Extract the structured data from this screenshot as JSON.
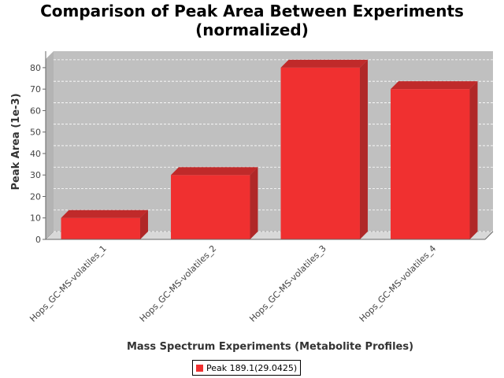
{
  "chart_data": {
    "type": "bar",
    "title_lines": [
      "Comparison of Peak Area Between Experiments",
      "(normalized)"
    ],
    "xlabel": "Mass Spectrum Experiments (Metabolite Profiles)",
    "ylabel": "Peak Area (1e-3)",
    "categories": [
      "Hops_GC-MS-volatiles_1",
      "Hops_GC-MS-volatiles_2",
      "Hops_GC-MS-volatiles_3",
      "Hops_GC-MS-volatiles_4"
    ],
    "series": [
      {
        "name": "Peak 189.1(29.0425)",
        "values": [
          10,
          30,
          80,
          70
        ]
      }
    ],
    "ylim": [
      0,
      84
    ],
    "yticks": [
      0,
      10,
      20,
      30,
      40,
      50,
      60,
      70,
      80
    ],
    "grid": true,
    "legend_position": "bottom",
    "colors": {
      "bar": "#f03030",
      "bar_top": "#c02a2a",
      "bar_side": "#b02828",
      "plot_bg": "#c0c0c0",
      "floor": "#d8d8d8"
    }
  }
}
